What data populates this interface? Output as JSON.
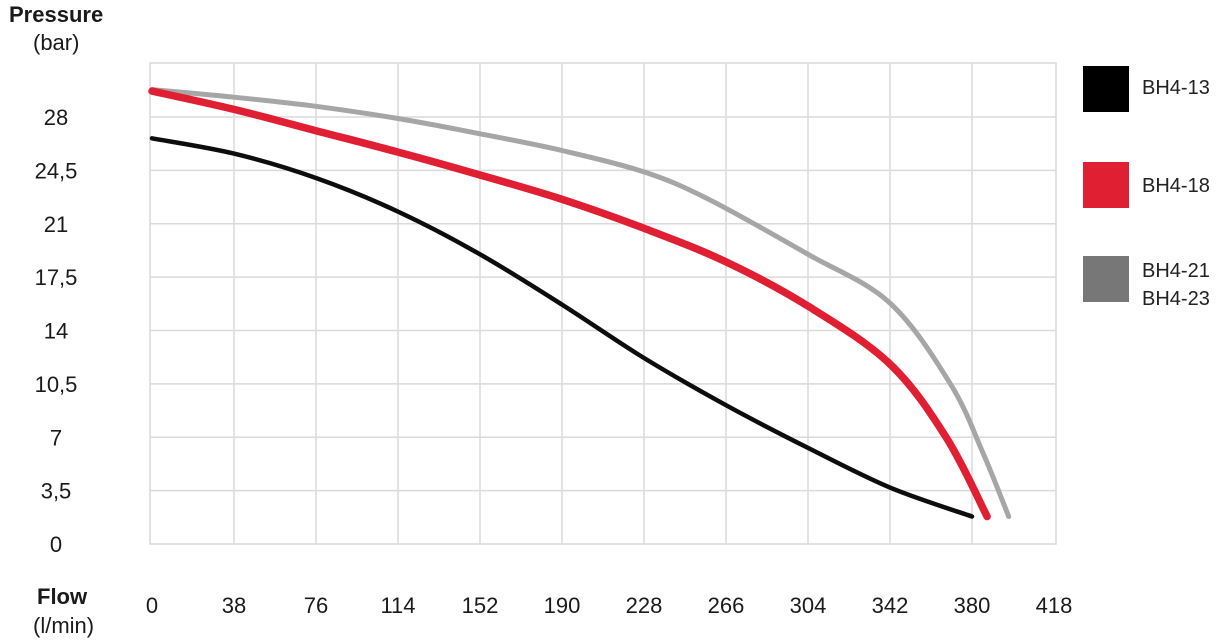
{
  "chart_data": {
    "type": "line",
    "ylabel": "Pressure",
    "ylabel_unit": "(bar)",
    "xlabel": "Flow",
    "xlabel_unit": "(l/min)",
    "x_ticks": [
      "0",
      "38",
      "76",
      "114",
      "152",
      "190",
      "228",
      "266",
      "304",
      "342",
      "380",
      "418"
    ],
    "y_ticks": [
      "0",
      "3,5",
      "7",
      "10,5",
      "14",
      "17,5",
      "21",
      "24,5",
      "28"
    ],
    "xlim": [
      0,
      418
    ],
    "ylim": [
      0,
      30
    ],
    "grid": true,
    "legend_position": "right",
    "series": [
      {
        "name": "BH4-13",
        "color": "#0d0d0d",
        "points": [
          [
            0,
            26.6
          ],
          [
            38,
            25.6
          ],
          [
            76,
            24.0
          ],
          [
            114,
            21.8
          ],
          [
            152,
            19.0
          ],
          [
            190,
            15.7
          ],
          [
            228,
            12.2
          ],
          [
            266,
            9.1
          ],
          [
            304,
            6.3
          ],
          [
            342,
            3.7
          ],
          [
            380,
            1.8
          ]
        ]
      },
      {
        "name": "BH4-18",
        "color": "#e01f33",
        "points": [
          [
            0,
            29.7
          ],
          [
            38,
            28.5
          ],
          [
            76,
            27.1
          ],
          [
            114,
            25.7
          ],
          [
            152,
            24.2
          ],
          [
            190,
            22.6
          ],
          [
            228,
            20.7
          ],
          [
            266,
            18.5
          ],
          [
            304,
            15.6
          ],
          [
            342,
            11.8
          ],
          [
            368,
            7.0
          ],
          [
            387,
            1.8
          ]
        ]
      },
      {
        "name": "BH4-21\nBH4-23",
        "color": "#a6a6a6",
        "points": [
          [
            0,
            29.8
          ],
          [
            38,
            29.3
          ],
          [
            76,
            28.7
          ],
          [
            114,
            27.9
          ],
          [
            152,
            26.9
          ],
          [
            190,
            25.8
          ],
          [
            228,
            24.4
          ],
          [
            258,
            22.6
          ],
          [
            304,
            19.0
          ],
          [
            342,
            15.8
          ],
          [
            370,
            10.5
          ],
          [
            385,
            6.0
          ],
          [
            397,
            1.8
          ]
        ]
      }
    ]
  },
  "legend": [
    {
      "label": "BH4-13",
      "color": "#000000"
    },
    {
      "label": "BH4-18",
      "color": "#e01f33"
    },
    {
      "label": "BH4-21\nBH4-23",
      "color": "#777777"
    }
  ]
}
